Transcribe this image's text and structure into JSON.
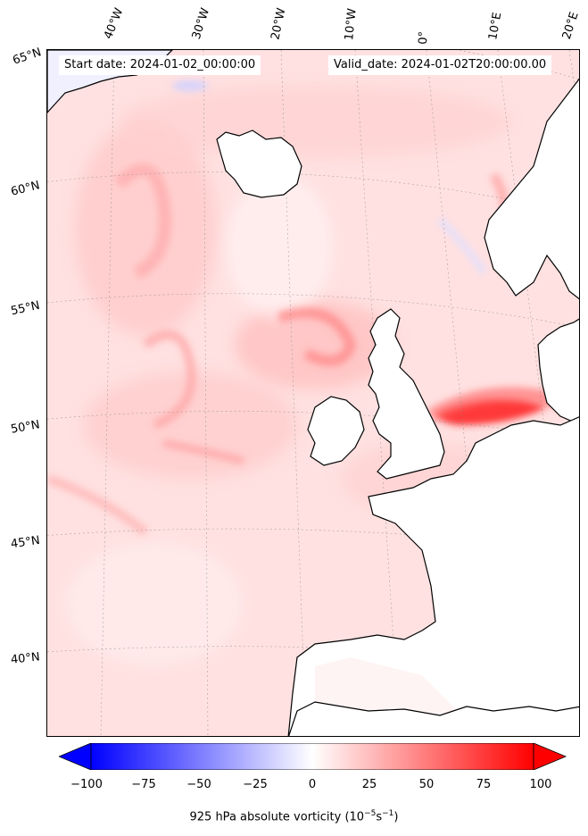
{
  "map": {
    "start_label": "Start date: 2024-01-02_00:00:00",
    "valid_label": "Valid_date: 2024-01-02T20:00:00.00",
    "longitude_labels": [
      "40°W",
      "30°W",
      "20°W",
      "10°W",
      "0°",
      "10°E",
      "20°E"
    ],
    "latitude_labels": [
      "65°N",
      "60°N",
      "55°N",
      "50°N",
      "45°N",
      "40°N"
    ],
    "coastline_color": "#000000",
    "positive_color": "#ff0000",
    "negative_color": "#0000ff"
  },
  "colorbar": {
    "ticks": [
      "−100",
      "−75",
      "−50",
      "−25",
      "0",
      "25",
      "50",
      "75",
      "100"
    ],
    "label_main": "925 hPa absolute vorticity (10",
    "label_exp1": "−5",
    "label_mid": "s",
    "label_exp2": "−1",
    "label_end": ")",
    "range": [
      -100,
      100
    ],
    "colormap": "bwr",
    "extend": "both"
  }
}
